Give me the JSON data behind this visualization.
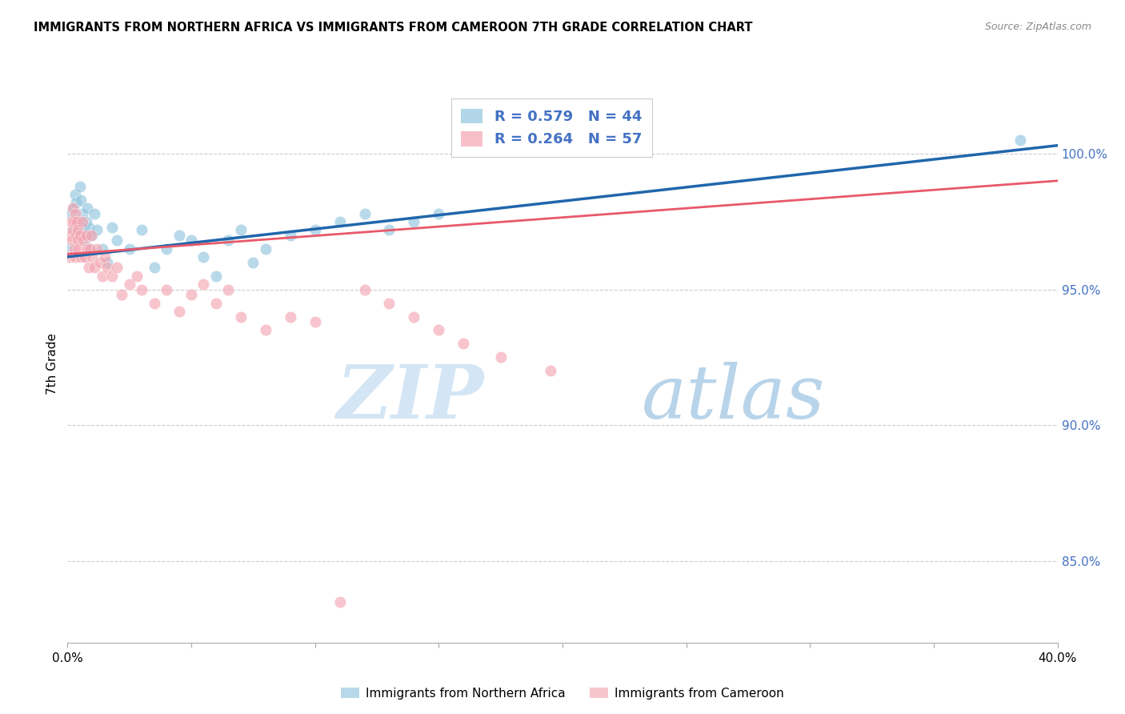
{
  "title": "IMMIGRANTS FROM NORTHERN AFRICA VS IMMIGRANTS FROM CAMEROON 7TH GRADE CORRELATION CHART",
  "source": "Source: ZipAtlas.com",
  "ylabel": "7th Grade",
  "series1_label": "Immigrants from Northern Africa",
  "series2_label": "Immigrants from Cameroon",
  "series1_R": 0.579,
  "series1_N": 44,
  "series2_R": 0.264,
  "series2_N": 57,
  "series1_color": "#92c5de",
  "series2_color": "#f4a6b2",
  "trend1_color": "#2166ac",
  "trend2_color": "#e8596a",
  "xlim": [
    0.0,
    40.0
  ],
  "ylim": [
    82.0,
    102.5
  ],
  "right_yticks": [
    85.0,
    90.0,
    95.0,
    100.0
  ],
  "series1_x": [
    0.1,
    0.15,
    0.2,
    0.25,
    0.3,
    0.35,
    0.4,
    0.45,
    0.5,
    0.55,
    0.6,
    0.65,
    0.7,
    0.75,
    0.8,
    0.85,
    0.9,
    1.0,
    1.1,
    1.2,
    1.4,
    1.6,
    1.8,
    2.0,
    2.5,
    3.0,
    3.5,
    4.0,
    4.5,
    5.0,
    5.5,
    6.0,
    6.5,
    7.0,
    7.5,
    8.0,
    9.0,
    10.0,
    11.0,
    12.0,
    13.0,
    14.0,
    15.0,
    38.5
  ],
  "series1_y": [
    96.5,
    97.8,
    97.2,
    98.0,
    98.5,
    98.2,
    97.5,
    97.0,
    98.8,
    98.3,
    97.8,
    97.2,
    96.8,
    97.5,
    98.0,
    97.3,
    96.5,
    97.0,
    97.8,
    97.2,
    96.5,
    96.0,
    97.3,
    96.8,
    96.5,
    97.2,
    95.8,
    96.5,
    97.0,
    96.8,
    96.2,
    95.5,
    96.8,
    97.2,
    96.0,
    96.5,
    97.0,
    97.2,
    97.5,
    97.8,
    97.2,
    97.5,
    97.8,
    100.5
  ],
  "series2_x": [
    0.1,
    0.12,
    0.15,
    0.18,
    0.2,
    0.22,
    0.25,
    0.28,
    0.3,
    0.32,
    0.35,
    0.38,
    0.4,
    0.42,
    0.45,
    0.5,
    0.55,
    0.6,
    0.65,
    0.7,
    0.75,
    0.8,
    0.85,
    0.9,
    0.95,
    1.0,
    1.1,
    1.2,
    1.3,
    1.4,
    1.5,
    1.6,
    1.8,
    2.0,
    2.2,
    2.5,
    2.8,
    3.0,
    3.5,
    4.0,
    4.5,
    5.0,
    5.5,
    6.0,
    6.5,
    7.0,
    8.0,
    9.0,
    10.0,
    11.0,
    12.0,
    13.0,
    14.0,
    15.0,
    16.0,
    17.5,
    19.5
  ],
  "series2_y": [
    96.2,
    97.0,
    97.5,
    96.8,
    97.2,
    98.0,
    97.5,
    96.5,
    97.8,
    96.2,
    97.0,
    97.5,
    96.8,
    97.2,
    96.5,
    97.0,
    96.2,
    97.5,
    96.8,
    96.2,
    97.0,
    96.5,
    95.8,
    96.5,
    97.0,
    96.2,
    95.8,
    96.5,
    96.0,
    95.5,
    96.2,
    95.8,
    95.5,
    95.8,
    94.8,
    95.2,
    95.5,
    95.0,
    94.5,
    95.0,
    94.2,
    94.8,
    95.2,
    94.5,
    95.0,
    94.0,
    93.5,
    94.0,
    93.8,
    83.5,
    95.0,
    94.5,
    94.0,
    93.5,
    93.0,
    92.5,
    92.0
  ]
}
